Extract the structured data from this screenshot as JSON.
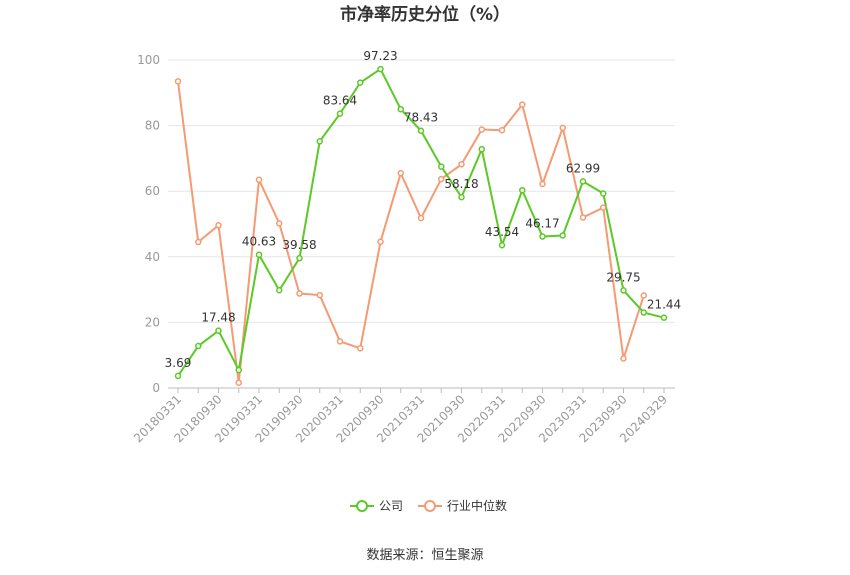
{
  "chart_data": {
    "type": "line",
    "title": "市净率历史分位（%）",
    "xlabel": "",
    "ylabel": "",
    "ylim": [
      0,
      100
    ],
    "yticks": [
      0,
      20,
      40,
      60,
      80,
      100
    ],
    "grid": true,
    "legend_position": "bottom",
    "x": [
      "20180331",
      "20180630",
      "20180930",
      "20181231",
      "20190331",
      "20190630",
      "20190930",
      "20191231",
      "20200331",
      "20200630",
      "20200930",
      "20201231",
      "20210331",
      "20210630",
      "20210930",
      "20211231",
      "20220331",
      "20220630",
      "20220930",
      "20221231",
      "20230331",
      "20230630",
      "20230930",
      "20231231",
      "20240329"
    ],
    "x_tick_labels": [
      "20180331",
      "20180930",
      "20190331",
      "20190930",
      "20200331",
      "20200930",
      "20210331",
      "20210930",
      "20220331",
      "20220930",
      "20230331",
      "20230930",
      "20240329"
    ],
    "series": [
      {
        "name": "公司",
        "color": "#5cc926",
        "values": [
          3.69,
          12.8,
          17.48,
          5.5,
          40.63,
          29.8,
          39.58,
          75.2,
          83.64,
          93.1,
          97.23,
          85.0,
          78.43,
          67.5,
          58.18,
          72.8,
          43.54,
          60.3,
          46.17,
          46.5,
          62.99,
          59.3,
          29.75,
          23.0,
          21.44
        ]
      },
      {
        "name": "行业中位数",
        "color": "#f59a73",
        "values": [
          93.5,
          44.5,
          49.6,
          1.6,
          63.5,
          50.2,
          28.8,
          28.3,
          14.2,
          12.1,
          44.6,
          65.5,
          51.8,
          63.7,
          68.2,
          78.8,
          78.6,
          86.4,
          62.2,
          79.3,
          52.0,
          55.0,
          9.0,
          28.2,
          null
        ]
      }
    ],
    "data_labels": [
      {
        "series": 0,
        "index": 0,
        "text": "3.69"
      },
      {
        "series": 0,
        "index": 2,
        "text": "17.48"
      },
      {
        "series": 0,
        "index": 4,
        "text": "40.63"
      },
      {
        "series": 0,
        "index": 6,
        "text": "39.58"
      },
      {
        "series": 0,
        "index": 8,
        "text": "83.64"
      },
      {
        "series": 0,
        "index": 10,
        "text": "97.23"
      },
      {
        "series": 0,
        "index": 12,
        "text": "78.43"
      },
      {
        "series": 0,
        "index": 14,
        "text": "58.18"
      },
      {
        "series": 0,
        "index": 16,
        "text": "43.54"
      },
      {
        "series": 0,
        "index": 18,
        "text": "46.17"
      },
      {
        "series": 0,
        "index": 20,
        "text": "62.99"
      },
      {
        "series": 0,
        "index": 22,
        "text": "29.75"
      },
      {
        "series": 0,
        "index": 24,
        "text": "21.44"
      }
    ]
  },
  "source_text": "数据来源：恒生聚源"
}
